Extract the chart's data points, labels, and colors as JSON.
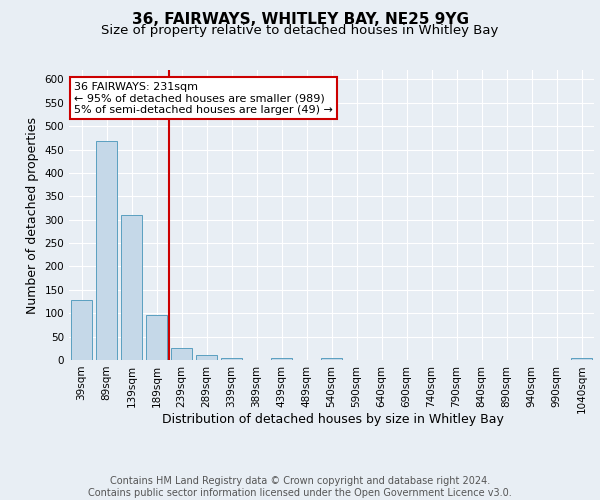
{
  "title": "36, FAIRWAYS, WHITLEY BAY, NE25 9YG",
  "subtitle": "Size of property relative to detached houses in Whitley Bay",
  "xlabel": "Distribution of detached houses by size in Whitley Bay",
  "ylabel": "Number of detached properties",
  "bar_labels": [
    "39sqm",
    "89sqm",
    "139sqm",
    "189sqm",
    "239sqm",
    "289sqm",
    "339sqm",
    "389sqm",
    "439sqm",
    "489sqm",
    "540sqm",
    "590sqm",
    "640sqm",
    "690sqm",
    "740sqm",
    "790sqm",
    "840sqm",
    "890sqm",
    "940sqm",
    "990sqm",
    "1040sqm"
  ],
  "bar_values": [
    128,
    469,
    310,
    97,
    25,
    11,
    5,
    0,
    5,
    0,
    5,
    0,
    0,
    0,
    0,
    0,
    0,
    0,
    0,
    0,
    5
  ],
  "bar_color": "#c5d8e8",
  "bar_edge_color": "#5a9fc0",
  "bar_width": 0.85,
  "vline_color": "#cc0000",
  "annotation_text": "36 FAIRWAYS: 231sqm\n← 95% of detached houses are smaller (989)\n5% of semi-detached houses are larger (49) →",
  "annotation_box_color": "#ffffff",
  "annotation_box_edge_color": "#cc0000",
  "ylim": [
    0,
    620
  ],
  "yticks": [
    0,
    50,
    100,
    150,
    200,
    250,
    300,
    350,
    400,
    450,
    500,
    550,
    600
  ],
  "footer_text": "Contains HM Land Registry data © Crown copyright and database right 2024.\nContains public sector information licensed under the Open Government Licence v3.0.",
  "background_color": "#e8eef4",
  "plot_background_color": "#e8eef4",
  "grid_color": "#ffffff",
  "title_fontsize": 11,
  "subtitle_fontsize": 9.5,
  "axis_label_fontsize": 9,
  "tick_fontsize": 7.5,
  "footer_fontsize": 7,
  "annotation_fontsize": 8
}
